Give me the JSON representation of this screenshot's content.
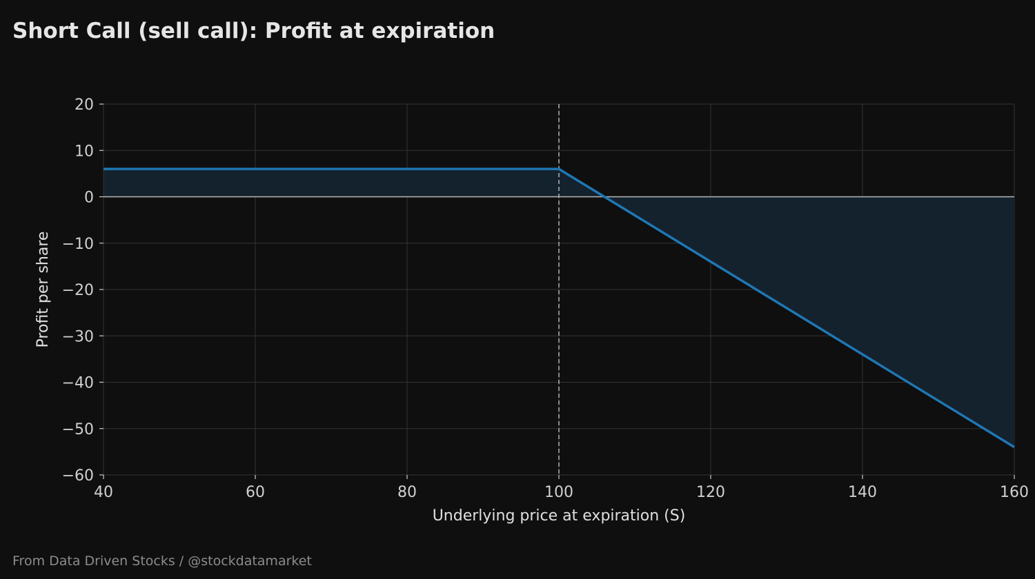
{
  "chart_data": {
    "type": "line",
    "title": "Short Call (sell call): Profit at expiration",
    "xlabel": "Underlying price at expiration (S)",
    "ylabel": "Profit per share",
    "xlim": [
      40,
      160
    ],
    "ylim": [
      -60,
      20
    ],
    "xticks": [
      40,
      60,
      80,
      100,
      120,
      140,
      160
    ],
    "yticks": [
      20,
      10,
      0,
      -10,
      -20,
      -30,
      -40,
      -50,
      -60
    ],
    "grid": true,
    "strike": 100,
    "reference_lines": [
      {
        "type": "vertical",
        "x": 100,
        "style": "dashed"
      },
      {
        "type": "horizontal",
        "y": 0,
        "style": "solid"
      }
    ],
    "series": [
      {
        "x": [
          40,
          100,
          106,
          160
        ],
        "y": [
          6,
          6,
          0,
          -54
        ],
        "color": "#1f77b4",
        "fill_to_zero": true
      }
    ]
  },
  "footer": "From Data Driven Stocks / @stockdatamarket",
  "colors": {
    "background": "#0f0f0f",
    "grid": "#333333",
    "line": "#1f77b4",
    "fill": "#14222e",
    "zero_line": "#b8b8b8",
    "strike_line": "#aaaaaa"
  }
}
